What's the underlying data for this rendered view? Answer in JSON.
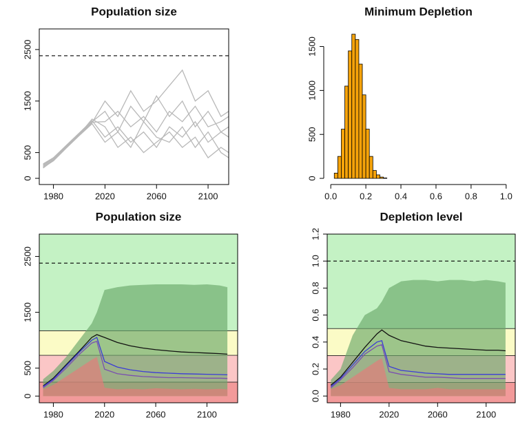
{
  "chart_data": [
    {
      "type": "line",
      "title": "Population size",
      "x": [
        1972,
        1980,
        1990,
        2000,
        2010,
        2020,
        2030,
        2040,
        2050,
        2060,
        2070,
        2080,
        2090,
        2100,
        2110,
        2116
      ],
      "xlim": [
        1969,
        2116
      ],
      "xticks": [
        1980,
        2020,
        2060,
        2100
      ],
      "ylim": [
        -120,
        2900
      ],
      "yticks": [
        0,
        500,
        1500,
        2500
      ],
      "hline": 2380,
      "series": [
        {
          "color": "#b8b8b8",
          "style": "line",
          "values": [
            250,
            380,
            620,
            860,
            1100,
            1300,
            900,
            1400,
            1100,
            1600,
            1200,
            1500,
            1000,
            1300,
            900,
            1000
          ]
        },
        {
          "color": "#b8b8b8",
          "style": "line",
          "values": [
            200,
            350,
            600,
            840,
            1080,
            1500,
            1200,
            1700,
            1300,
            1500,
            1800,
            2100,
            1500,
            1700,
            1200,
            1300
          ]
        },
        {
          "color": "#b8b8b8",
          "style": "line",
          "values": [
            280,
            400,
            640,
            880,
            1120,
            800,
            1000,
            700,
            900,
            600,
            1000,
            800,
            1100,
            700,
            900,
            800
          ]
        },
        {
          "color": "#b8b8b8",
          "style": "line",
          "values": [
            230,
            360,
            610,
            850,
            1150,
            1000,
            600,
            800,
            500,
            700,
            900,
            600,
            800,
            400,
            600,
            500
          ]
        },
        {
          "color": "#b8b8b8",
          "style": "line",
          "values": [
            210,
            340,
            590,
            830,
            1060,
            700,
            900,
            600,
            1100,
            800,
            700,
            1000,
            600,
            900,
            500,
            400
          ]
        },
        {
          "color": "#b8b8b8",
          "style": "line",
          "values": [
            260,
            390,
            630,
            870,
            1090,
            1100,
            1300,
            1000,
            1200,
            900,
            1300,
            1100,
            1400,
            1000,
            1100,
            1200
          ]
        }
      ]
    },
    {
      "type": "histogram",
      "title": "Minimum Depletion",
      "bins": [
        0.02,
        0.04,
        0.06,
        0.08,
        0.1,
        0.12,
        0.14,
        0.16,
        0.18,
        0.2,
        0.22,
        0.24,
        0.26,
        0.28,
        0.3,
        0.32
      ],
      "counts": [
        60,
        250,
        560,
        1050,
        1450,
        1640,
        1580,
        1300,
        950,
        560,
        250,
        90,
        40,
        15,
        5
      ],
      "color": "#f5a30a",
      "xlim": [
        -0.04,
        1.04
      ],
      "xticks": [
        {
          "value": 0,
          "label": "0.0"
        },
        0.2,
        0.4,
        0.6,
        0.8,
        {
          "value": 1,
          "label": "1.0"
        }
      ],
      "ylim": [
        -70,
        1700
      ],
      "yticks": [
        0,
        500,
        1000,
        1500
      ]
    },
    {
      "type": "line",
      "title": "Population size",
      "x": [
        1972,
        1980,
        1990,
        2000,
        2010,
        2014,
        2020,
        2030,
        2040,
        2050,
        2060,
        2070,
        2080,
        2090,
        2100,
        2110,
        2116
      ],
      "xlim": [
        1969,
        2124
      ],
      "xticks": [
        1980,
        2020,
        2060,
        2100
      ],
      "ylim": [
        -120,
        2900
      ],
      "yticks": [
        0,
        500,
        1500,
        2500
      ],
      "hline": 2380,
      "zones": [
        {
          "from": -120,
          "to": 250,
          "color": "#f29a9a"
        },
        {
          "from": 250,
          "to": 730,
          "color": "#fbc6c6"
        },
        {
          "from": 730,
          "to": 1170,
          "color": "#fbfbc6"
        },
        {
          "from": 1170,
          "to": 2900,
          "color": "#c4f2c4"
        }
      ],
      "series": [
        {
          "color": "#6aa86a",
          "style": "area",
          "values": [
            300,
            450,
            700,
            1000,
            1300,
            1500,
            1900,
            1950,
            1980,
            1990,
            2000,
            2000,
            2000,
            1990,
            2000,
            1980,
            1950
          ]
        },
        {
          "color": "#e67a7a",
          "style": "area",
          "values": [
            120,
            200,
            350,
            500,
            650,
            700,
            150,
            120,
            130,
            120,
            140,
            130,
            120,
            130,
            120,
            130,
            120
          ]
        },
        {
          "color": "#111111",
          "style": "line",
          "values": [
            180,
            320,
            560,
            800,
            1050,
            1100,
            1050,
            960,
            900,
            860,
            830,
            810,
            790,
            780,
            770,
            760,
            750
          ]
        },
        {
          "color": "#3b3bd6",
          "style": "line",
          "values": [
            170,
            300,
            540,
            780,
            1000,
            1050,
            620,
            520,
            470,
            440,
            420,
            410,
            400,
            395,
            390,
            385,
            380
          ]
        },
        {
          "color": "#7a4fb0",
          "style": "line",
          "values": [
            150,
            280,
            500,
            740,
            950,
            980,
            480,
            400,
            370,
            350,
            340,
            330,
            330,
            325,
            320,
            320,
            315
          ]
        }
      ]
    },
    {
      "type": "line",
      "title": "Depletion level",
      "x": [
        1972,
        1980,
        1990,
        2000,
        2010,
        2014,
        2020,
        2030,
        2040,
        2050,
        2060,
        2070,
        2080,
        2090,
        2100,
        2110,
        2116
      ],
      "xlim": [
        1969,
        2124
      ],
      "xticks": [
        1980,
        2020,
        2060,
        2100
      ],
      "ylim": [
        -0.05,
        1.2
      ],
      "yticks": [
        {
          "value": 0,
          "label": "0.0"
        },
        0.2,
        0.4,
        0.6,
        0.8,
        {
          "value": 1,
          "label": "1.0"
        },
        1.2
      ],
      "hline": 1,
      "zones": [
        {
          "from": -0.05,
          "to": 0.1,
          "color": "#f29a9a"
        },
        {
          "from": 0.1,
          "to": 0.3,
          "color": "#fbc6c6"
        },
        {
          "from": 0.3,
          "to": 0.5,
          "color": "#fbfbc6"
        },
        {
          "from": 0.5,
          "to": 1.2,
          "color": "#c4f2c4"
        }
      ],
      "series": [
        {
          "color": "#6aa86a",
          "style": "area",
          "values": [
            0.12,
            0.2,
            0.45,
            0.6,
            0.65,
            0.7,
            0.8,
            0.85,
            0.86,
            0.86,
            0.85,
            0.86,
            0.86,
            0.85,
            0.86,
            0.85,
            0.84
          ]
        },
        {
          "color": "#e67a7a",
          "style": "area",
          "values": [
            0.05,
            0.08,
            0.14,
            0.2,
            0.26,
            0.28,
            0.06,
            0.05,
            0.05,
            0.05,
            0.06,
            0.05,
            0.05,
            0.05,
            0.05,
            0.05,
            0.05
          ]
        },
        {
          "color": "#111111",
          "style": "line",
          "values": [
            0.08,
            0.14,
            0.25,
            0.36,
            0.46,
            0.49,
            0.45,
            0.41,
            0.39,
            0.37,
            0.36,
            0.355,
            0.35,
            0.345,
            0.34,
            0.34,
            0.335
          ]
        },
        {
          "color": "#3b3bd6",
          "style": "line",
          "values": [
            0.07,
            0.13,
            0.23,
            0.33,
            0.4,
            0.41,
            0.22,
            0.19,
            0.18,
            0.17,
            0.165,
            0.16,
            0.16,
            0.16,
            0.16,
            0.16,
            0.16
          ]
        },
        {
          "color": "#7a4fb0",
          "style": "line",
          "values": [
            0.06,
            0.12,
            0.21,
            0.31,
            0.37,
            0.38,
            0.18,
            0.16,
            0.15,
            0.14,
            0.14,
            0.135,
            0.13,
            0.13,
            0.13,
            0.13,
            0.13
          ]
        }
      ]
    }
  ]
}
